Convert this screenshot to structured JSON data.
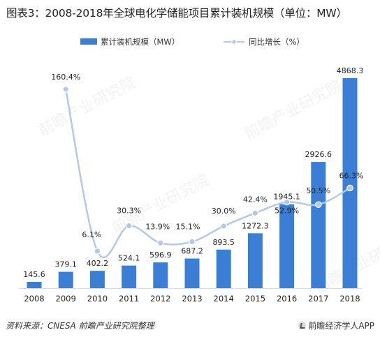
{
  "title": "图表3：2008-2018年全球电化学储能项目累计装机规模（单位：MW）",
  "source": "资料来源：CNESA  前瞻产业研究院整理",
  "brand": "前瞻经济学人APP",
  "watermark": "前瞻产业研究院",
  "colors": {
    "bar": "#3a7fd5",
    "line": "#b4c9e8",
    "marker": "#b4c9e8",
    "text": "#222222"
  },
  "chart_data": {
    "type": "bar",
    "categories": [
      "2008",
      "2009",
      "2010",
      "2011",
      "2012",
      "2013",
      "2014",
      "2015",
      "2016",
      "2017",
      "2018"
    ],
    "series": [
      {
        "name": "累计装机规模（MW）",
        "type": "bar",
        "axis": "left",
        "values": [
          145.6,
          379.1,
          402.2,
          524.1,
          596.9,
          687.2,
          893.5,
          1272.3,
          1945.1,
          2926.6,
          4868.3
        ],
        "labels": [
          "145.6",
          "379.1",
          "402.2",
          "524.1",
          "596.9",
          "687.2",
          "893.5",
          "1272.3",
          "1945.1",
          "2926.6",
          "4868.3"
        ]
      },
      {
        "name": "同比增长（%）",
        "type": "line",
        "axis": "right",
        "x": [
          "2009",
          "2010",
          "2011",
          "2012",
          "2013",
          "2014",
          "2015",
          "2016",
          "2017",
          "2018"
        ],
        "values": [
          160.4,
          6.1,
          30.3,
          13.9,
          15.1,
          30.0,
          42.4,
          52.9,
          50.5,
          66.3
        ],
        "labels": [
          "160.4%",
          "6.1%",
          "30.3%",
          "13.9%",
          "15.1%",
          "30.0%",
          "42.4%",
          "52.9%",
          "50.5%",
          "66.3%"
        ]
      }
    ],
    "legend_position": "top-center",
    "grid": false
  }
}
